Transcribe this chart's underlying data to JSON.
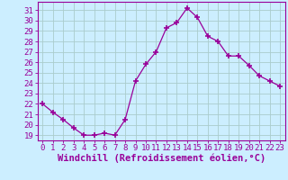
{
  "x": [
    0,
    1,
    2,
    3,
    4,
    5,
    6,
    7,
    8,
    9,
    10,
    11,
    12,
    13,
    14,
    15,
    16,
    17,
    18,
    19,
    20,
    21,
    22,
    23
  ],
  "y": [
    22.0,
    21.2,
    20.5,
    19.7,
    19.0,
    19.0,
    19.2,
    19.0,
    20.5,
    24.2,
    25.8,
    27.0,
    29.3,
    29.8,
    31.2,
    30.3,
    28.5,
    28.0,
    26.6,
    26.6,
    25.7,
    24.7,
    24.2,
    23.7
  ],
  "line_color": "#990099",
  "marker": "+",
  "marker_size": 4,
  "marker_lw": 1.2,
  "bg_color": "#cceeff",
  "grid_color": "#aacccc",
  "xlabel": "Windchill (Refroidissement éolien,°C)",
  "ylabel_ticks": [
    19,
    20,
    21,
    22,
    23,
    24,
    25,
    26,
    27,
    28,
    29,
    30,
    31
  ],
  "xlim": [
    -0.5,
    23.5
  ],
  "ylim": [
    18.5,
    31.8
  ],
  "tick_fontsize": 6.5,
  "xlabel_fontsize": 7.5,
  "xticks": [
    0,
    1,
    2,
    3,
    4,
    5,
    6,
    7,
    8,
    9,
    10,
    11,
    12,
    13,
    14,
    15,
    16,
    17,
    18,
    19,
    20,
    21,
    22,
    23
  ],
  "xtick_labels": [
    "0",
    "1",
    "2",
    "3",
    "4",
    "5",
    "6",
    "7",
    "8",
    "9",
    "10",
    "11",
    "12",
    "13",
    "14",
    "15",
    "16",
    "17",
    "18",
    "19",
    "20",
    "21",
    "22",
    "23"
  ]
}
